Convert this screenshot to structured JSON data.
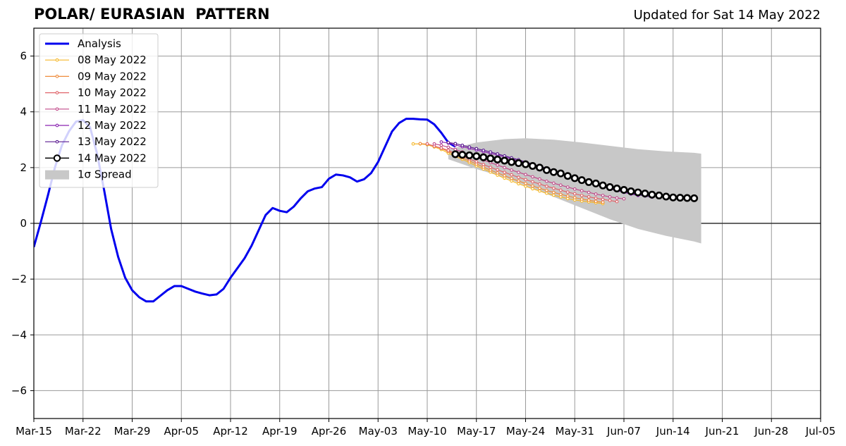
{
  "header": {
    "title": "POLAR/ EURASIAN  PATTERN",
    "updated": "Updated for Sat 14 May 2022"
  },
  "chart_data": {
    "type": "line",
    "title": "POLAR/ EURASIAN  PATTERN",
    "subtitle": "Updated for Sat 14 May 2022",
    "xlabel": "",
    "ylabel": "",
    "ylim": [
      -7,
      7
    ],
    "yticks": [
      -6,
      -4,
      -2,
      0,
      2,
      4,
      6
    ],
    "ytick_labels": [
      "−6",
      "−4",
      "−2",
      "0",
      "2",
      "4",
      "6"
    ],
    "xlim": [
      "2022-03-15",
      "2022-07-05"
    ],
    "xtick_labels": [
      "Mar-15",
      "Mar-22",
      "Mar-29",
      "Apr-05",
      "Apr-12",
      "Apr-19",
      "Apr-26",
      "May-03",
      "May-10",
      "May-17",
      "May-24",
      "May-31",
      "Jun-07",
      "Jun-14",
      "Jun-21",
      "Jun-28",
      "Jul-05"
    ],
    "grid": true,
    "legend_position": "top-left",
    "colors": {
      "analysis": "#0000ee",
      "spread": "#c8c8c8",
      "f0508": "#f5b82a",
      "f0509": "#ef8c3c",
      "f0510": "#e0646a",
      "f0511": "#c14a8a",
      "f0512": "#8a23b0",
      "f0513": "#5a1a90",
      "f0514": "#000000"
    },
    "analysis": {
      "name": "Analysis",
      "x": [
        "2022-03-15",
        "2022-03-16",
        "2022-03-17",
        "2022-03-18",
        "2022-03-19",
        "2022-03-20",
        "2022-03-21",
        "2022-03-22",
        "2022-03-23",
        "2022-03-24",
        "2022-03-25",
        "2022-03-26",
        "2022-03-27",
        "2022-03-28",
        "2022-03-29",
        "2022-03-30",
        "2022-03-31",
        "2022-04-01",
        "2022-04-02",
        "2022-04-03",
        "2022-04-04",
        "2022-04-05",
        "2022-04-06",
        "2022-04-07",
        "2022-04-08",
        "2022-04-09",
        "2022-04-10",
        "2022-04-11",
        "2022-04-12",
        "2022-04-13",
        "2022-04-14",
        "2022-04-15",
        "2022-04-16",
        "2022-04-17",
        "2022-04-18",
        "2022-04-19",
        "2022-04-20",
        "2022-04-21",
        "2022-04-22",
        "2022-04-23",
        "2022-04-24",
        "2022-04-25",
        "2022-04-26",
        "2022-04-27",
        "2022-04-28",
        "2022-04-29",
        "2022-04-30",
        "2022-05-01",
        "2022-05-02",
        "2022-05-03",
        "2022-05-04",
        "2022-05-05",
        "2022-05-06",
        "2022-05-07",
        "2022-05-08",
        "2022-05-09",
        "2022-05-10",
        "2022-05-11",
        "2022-05-12",
        "2022-05-13",
        "2022-05-14"
      ],
      "y": [
        -0.85,
        0.05,
        1.0,
        2.0,
        2.8,
        3.3,
        3.65,
        3.7,
        3.45,
        2.5,
        1.2,
        -0.2,
        -1.2,
        -1.95,
        -2.4,
        -2.65,
        -2.8,
        -2.8,
        -2.6,
        -2.4,
        -2.25,
        -2.25,
        -2.35,
        -2.45,
        -2.52,
        -2.58,
        -2.55,
        -2.35,
        -1.95,
        -1.6,
        -1.25,
        -0.8,
        -0.25,
        0.3,
        0.55,
        0.45,
        0.4,
        0.6,
        0.9,
        1.15,
        1.25,
        1.3,
        1.6,
        1.75,
        1.72,
        1.65,
        1.5,
        1.58,
        1.8,
        2.2,
        2.75,
        3.3,
        3.6,
        3.75,
        3.75,
        3.73,
        3.72,
        3.55,
        3.25,
        2.9,
        2.75
      ]
    },
    "spread": {
      "name": "1σ Spread",
      "x": [
        "2022-05-13",
        "2022-05-17",
        "2022-05-21",
        "2022-05-24",
        "2022-05-28",
        "2022-06-01",
        "2022-06-05",
        "2022-06-09",
        "2022-06-13",
        "2022-06-17",
        "2022-06-18"
      ],
      "upper": [
        2.65,
        2.9,
        3.02,
        3.05,
        3.0,
        2.9,
        2.78,
        2.66,
        2.58,
        2.53,
        2.5
      ],
      "lower": [
        2.3,
        1.95,
        1.65,
        1.35,
        0.95,
        0.55,
        0.15,
        -0.2,
        -0.45,
        -0.65,
        -0.72
      ]
    },
    "series": [
      {
        "name": "08 May 2022",
        "start": "2022-05-08",
        "values": [
          2.85,
          2.85,
          2.82,
          2.74,
          2.65,
          2.52,
          2.4,
          2.3,
          2.18,
          2.06,
          1.95,
          1.84,
          1.73,
          1.62,
          1.52,
          1.42,
          1.33,
          1.24,
          1.16,
          1.08,
          1.01,
          0.95,
          0.89,
          0.84,
          0.8,
          0.77,
          0.74,
          0.71
        ]
      },
      {
        "name": "09 May 2022",
        "start": "2022-05-09",
        "values": [
          2.86,
          2.84,
          2.77,
          2.69,
          2.58,
          2.46,
          2.35,
          2.24,
          2.13,
          2.02,
          1.91,
          1.81,
          1.71,
          1.61,
          1.52,
          1.43,
          1.34,
          1.26,
          1.18,
          1.11,
          1.04,
          0.98,
          0.92,
          0.87,
          0.83,
          0.79,
          0.76
        ]
      },
      {
        "name": "10 May 2022",
        "start": "2022-05-10",
        "values": [
          2.85,
          2.77,
          2.7,
          2.62,
          2.51,
          2.41,
          2.31,
          2.21,
          2.11,
          2.01,
          1.92,
          1.83,
          1.74,
          1.65,
          1.57,
          1.49,
          1.41,
          1.33,
          1.26,
          1.19,
          1.12,
          1.06,
          1.0,
          0.95,
          0.9,
          0.86,
          0.82,
          0.78
        ]
      },
      {
        "name": "11 May 2022",
        "start": "2022-05-11",
        "values": [
          2.85,
          2.8,
          2.73,
          2.65,
          2.56,
          2.46,
          2.36,
          2.27,
          2.18,
          2.09,
          2.0,
          1.91,
          1.83,
          1.75,
          1.67,
          1.59,
          1.51,
          1.44,
          1.37,
          1.3,
          1.23,
          1.17,
          1.11,
          1.05,
          1.0,
          0.95,
          0.91,
          0.88
        ]
      },
      {
        "name": "12 May 2022",
        "start": "2022-05-12",
        "values": [
          2.92,
          2.88,
          2.81,
          2.75,
          2.69,
          2.63,
          2.57,
          2.51,
          2.45,
          2.38,
          2.31,
          2.24,
          2.17,
          2.09,
          2.01,
          1.93,
          1.85,
          1.77,
          1.69,
          1.61,
          1.53,
          1.45,
          1.38,
          1.31,
          1.24,
          1.17,
          1.11,
          1.05,
          1.0
        ]
      },
      {
        "name": "13 May 2022",
        "start": "2022-05-13",
        "values": [
          2.9,
          2.86,
          2.8,
          2.74,
          2.68,
          2.62,
          2.56,
          2.49,
          2.42,
          2.35,
          2.28,
          2.2,
          2.13,
          2.05,
          1.97,
          1.89,
          1.81,
          1.73,
          1.65,
          1.57,
          1.49,
          1.42,
          1.35,
          1.28,
          1.21,
          1.15,
          1.09,
          1.03,
          0.98,
          0.94
        ]
      },
      {
        "name": "14 May 2022",
        "start": "2022-05-14",
        "values": [
          2.48,
          2.46,
          2.44,
          2.41,
          2.37,
          2.33,
          2.29,
          2.25,
          2.2,
          2.16,
          2.12,
          2.06,
          2.0,
          1.91,
          1.84,
          1.79,
          1.7,
          1.62,
          1.55,
          1.48,
          1.43,
          1.36,
          1.3,
          1.25,
          1.2,
          1.15,
          1.11,
          1.07,
          1.03,
          1.0,
          0.96,
          0.93,
          0.92,
          0.91,
          0.9
        ]
      }
    ]
  }
}
